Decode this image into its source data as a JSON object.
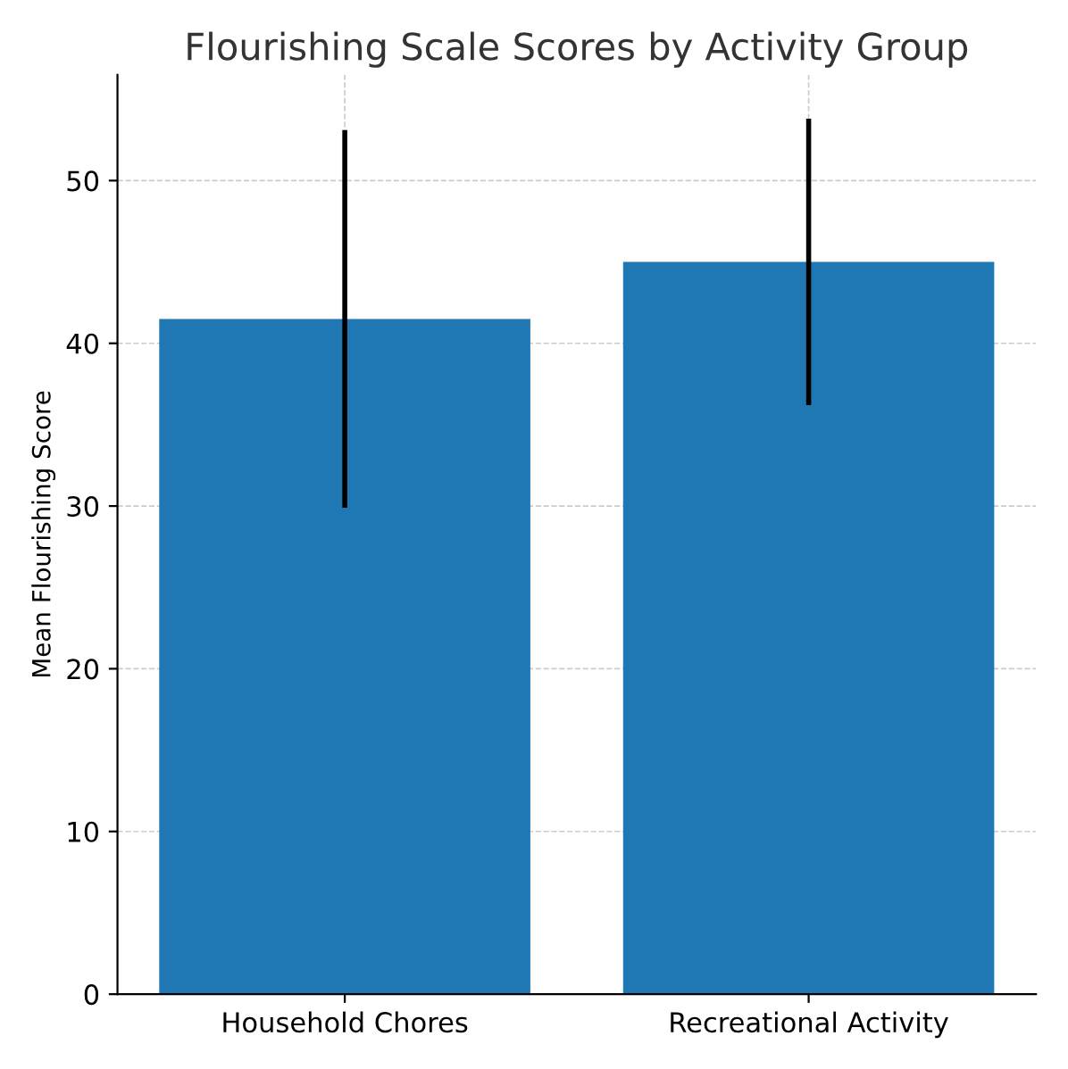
{
  "chart_data": {
    "type": "bar",
    "title": "Flourishing Scale Scores by Activity Group",
    "ylabel": "Mean Flourishing Score",
    "categories": [
      "Household Chores",
      "Recreational Activity"
    ],
    "values": [
      41.5,
      45.0
    ],
    "errors": [
      11.6,
      8.8
    ],
    "color": "#1f77b4",
    "ylim": [
      0,
      56.5
    ],
    "yticks": [
      0,
      10,
      20,
      30,
      40,
      50
    ],
    "grid": true
  }
}
